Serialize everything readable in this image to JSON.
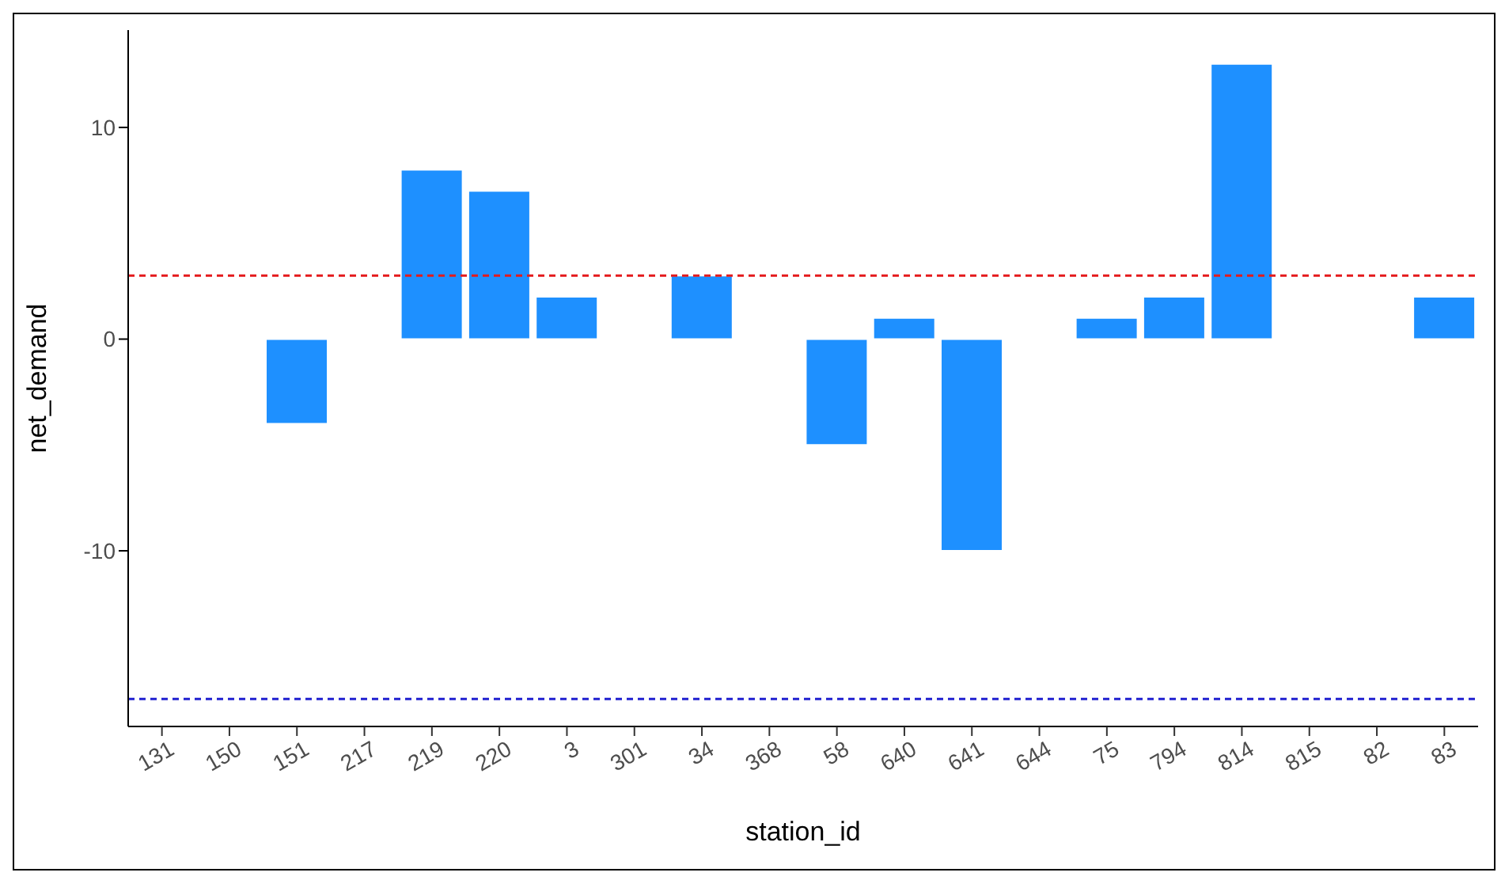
{
  "chart_data": {
    "type": "bar",
    "xlabel": "station_id",
    "ylabel": "net_demand",
    "categories": [
      "131",
      "150",
      "151",
      "217",
      "219",
      "220",
      "3",
      "301",
      "34",
      "368",
      "58",
      "640",
      "641",
      "644",
      "75",
      "794",
      "814",
      "815",
      "82",
      "83"
    ],
    "values": [
      0,
      0,
      -4,
      0,
      8,
      7,
      2,
      0,
      3,
      0,
      -5,
      1,
      -10,
      0,
      1,
      2,
      13,
      0,
      0,
      2
    ],
    "color": "#1e90ff",
    "ylim": [
      -18.3,
      14.6
    ],
    "yticks": [
      -10,
      0,
      10
    ],
    "ref_lines": [
      {
        "axis": "y",
        "value": 3,
        "color": "#e41a1c",
        "line_style": "dashed"
      },
      {
        "axis": "y",
        "value": -17,
        "color": "#2020d0",
        "line_style": "dashed"
      }
    ]
  }
}
